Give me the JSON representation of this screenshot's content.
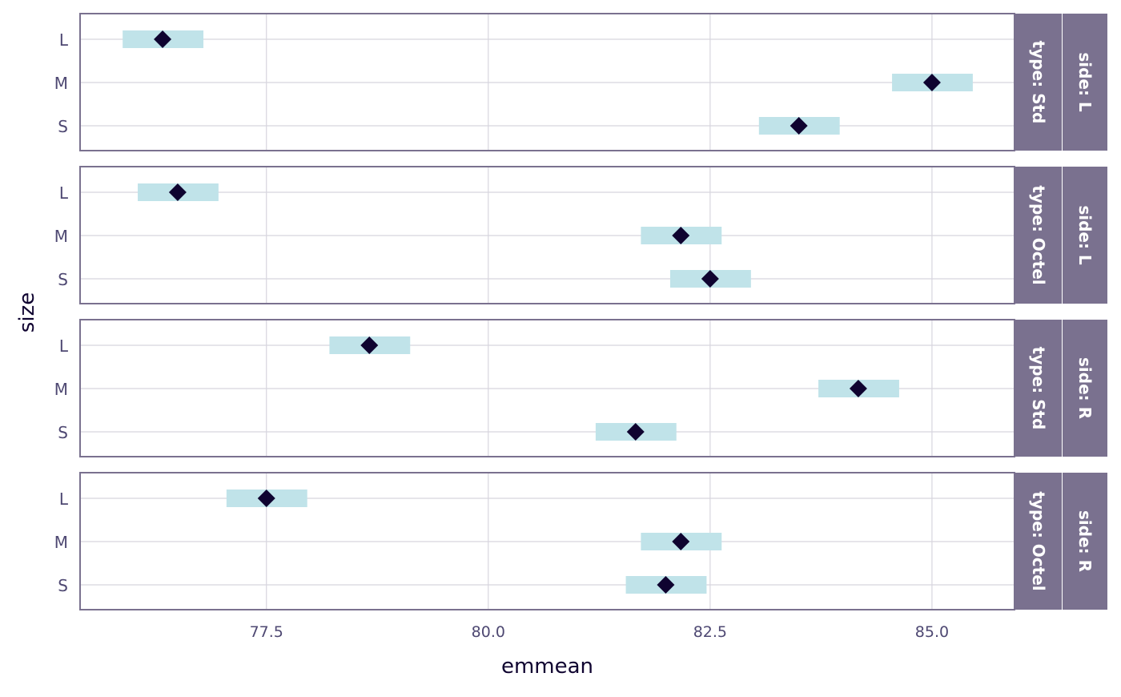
{
  "chart_data": {
    "type": "scatter",
    "xlabel": "emmean",
    "ylabel": "size",
    "xlim": [
      75.4,
      85.93
    ],
    "x_ticks": [
      "77.5",
      "80.0",
      "82.5",
      "85.0"
    ],
    "x_tick_values": [
      77.5,
      80.0,
      82.5,
      85.0
    ],
    "y_categories": [
      "L",
      "M",
      "S"
    ],
    "grid": true,
    "colors": {
      "point": "#0f0330",
      "ci": "#c0e3e9",
      "strip": "#7a718f",
      "border": "#7a718f",
      "grid": "#d7d5de",
      "text": "#4e4872"
    },
    "panels": [
      {
        "type_label": "type: Std",
        "side_label": "side: L",
        "points": [
          {
            "size": "L",
            "emmean": 76.33,
            "lower": 75.88,
            "upper": 76.79
          },
          {
            "size": "M",
            "emmean": 85.0,
            "lower": 84.55,
            "upper": 85.46
          },
          {
            "size": "S",
            "emmean": 83.5,
            "lower": 83.05,
            "upper": 83.96
          }
        ]
      },
      {
        "type_label": "type: Octel",
        "side_label": "side: L",
        "points": [
          {
            "size": "L",
            "emmean": 76.5,
            "lower": 76.05,
            "upper": 76.96
          },
          {
            "size": "M",
            "emmean": 82.17,
            "lower": 81.72,
            "upper": 82.63
          },
          {
            "size": "S",
            "emmean": 82.5,
            "lower": 82.05,
            "upper": 82.96
          }
        ]
      },
      {
        "type_label": "type: Std",
        "side_label": "side: R",
        "points": [
          {
            "size": "L",
            "emmean": 78.66,
            "lower": 78.21,
            "upper": 79.12
          },
          {
            "size": "M",
            "emmean": 84.17,
            "lower": 83.72,
            "upper": 84.63
          },
          {
            "size": "S",
            "emmean": 81.66,
            "lower": 81.21,
            "upper": 82.12
          }
        ]
      },
      {
        "type_label": "type: Octel",
        "side_label": "side: R",
        "points": [
          {
            "size": "L",
            "emmean": 77.5,
            "lower": 77.05,
            "upper": 77.96
          },
          {
            "size": "M",
            "emmean": 82.17,
            "lower": 81.72,
            "upper": 82.63
          },
          {
            "size": "S",
            "emmean": 82.0,
            "lower": 81.55,
            "upper": 82.46
          }
        ]
      }
    ]
  }
}
